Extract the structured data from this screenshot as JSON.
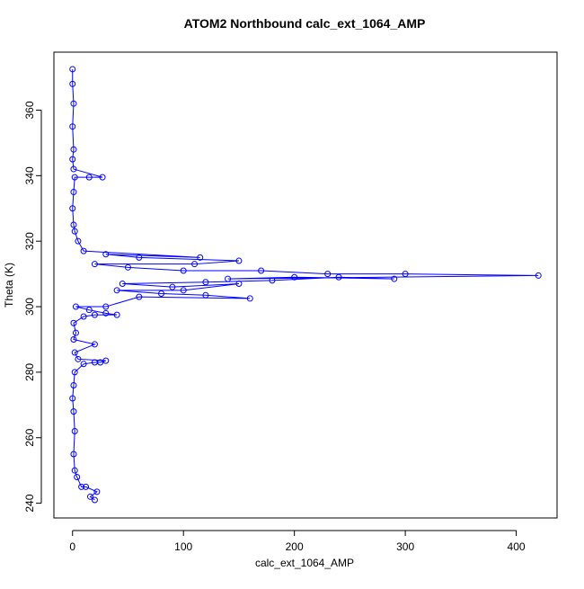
{
  "chart_data": {
    "type": "scatter-line",
    "title": "ATOM2 Northbound calc_ext_1064_AMP",
    "x_label": "calc_ext_1064_AMP",
    "y_label": "Theta (K)",
    "color": "#0000ff",
    "grid": false,
    "xlim": [
      -16.8,
      436.8
    ],
    "ylim": [
      235.5,
      377.7
    ],
    "xticks": [
      0,
      100,
      200,
      300,
      400
    ],
    "yticks": [
      240,
      260,
      280,
      300,
      320,
      340,
      360
    ],
    "x": [
      20,
      16,
      22,
      12,
      8,
      4,
      2,
      1,
      2,
      1,
      0,
      1,
      2,
      10,
      20,
      25,
      30,
      5,
      2,
      20,
      1,
      3,
      1,
      10,
      20,
      40,
      30,
      15,
      3,
      30,
      60,
      160,
      120,
      80,
      40,
      100,
      150,
      90,
      45,
      120,
      180,
      240,
      290,
      200,
      140,
      420,
      300,
      230,
      170,
      100,
      50,
      20,
      110,
      150,
      60,
      30,
      115,
      10,
      5,
      2,
      1,
      0,
      1,
      2,
      15,
      27,
      1,
      0,
      1,
      0,
      1,
      0,
      0
    ],
    "values": [
      241,
      242,
      243.5,
      245,
      245,
      248,
      250,
      255,
      262,
      268,
      272,
      276,
      280,
      282.5,
      283,
      283,
      283.5,
      284,
      286,
      288.5,
      290,
      292,
      295,
      297,
      297.5,
      297.5,
      298,
      299,
      300,
      300,
      303,
      302.5,
      303.5,
      304,
      305,
      305,
      307,
      306,
      307,
      307.5,
      308,
      309,
      308.5,
      309,
      308.5,
      309.5,
      310,
      310,
      311,
      311,
      312,
      313,
      313,
      314,
      315,
      316,
      315,
      317,
      320,
      323,
      325,
      330,
      335,
      339.5,
      339.5,
      339.5,
      342,
      345,
      348,
      355,
      362,
      368,
      372.5
    ]
  }
}
